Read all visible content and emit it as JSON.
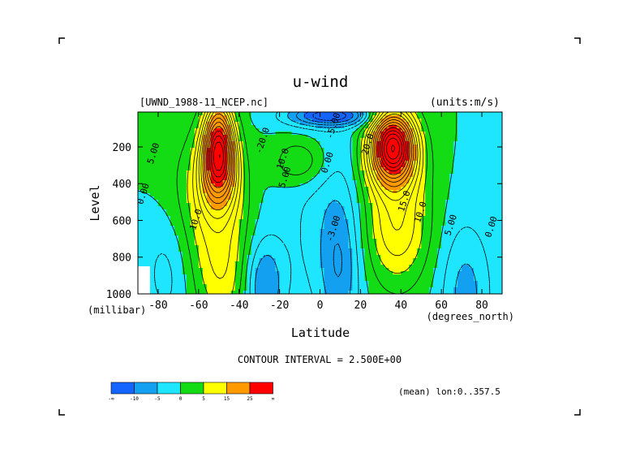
{
  "header": {
    "title": "u-wind",
    "dataset": "[UWND_1988-11_NCEP.nc]",
    "units": "(units:m/s)"
  },
  "axes": {
    "ylabel": "Level",
    "yunit": "(millibar)",
    "xlabel": "Latitude",
    "xunit": "(degrees_north)"
  },
  "footer": {
    "contour_interval": "CONTOUR INTERVAL = 2.500E+00",
    "mean_note": "(mean) lon:0..357.5"
  },
  "colorbar": {
    "colors": [
      "#1464ff",
      "#14a0f0",
      "#1ee6ff",
      "#14dc14",
      "#ffff00",
      "#ff9900",
      "#ff0000"
    ],
    "labels": [
      "-∞",
      "-10",
      "-5",
      "0",
      "5",
      "15",
      "25",
      "∞"
    ]
  },
  "chart_data": {
    "type": "contour",
    "title": "u-wind",
    "xlabel": "Latitude",
    "ylabel": "Level",
    "xlim": [
      -90,
      90
    ],
    "ylim": [
      1000,
      10
    ],
    "x_ticks": [
      -80,
      -60,
      -40,
      -20,
      0,
      20,
      40,
      60,
      80
    ],
    "y_ticks": [
      200,
      400,
      600,
      800,
      1000
    ],
    "contour_interval": 2.5,
    "contour_labels": [
      {
        "text": "5.00",
        "lat": -81,
        "level": 240
      },
      {
        "text": "0.00",
        "lat": -86,
        "level": 460
      },
      {
        "text": "10.0",
        "lat": -60,
        "level": 600
      },
      {
        "text": "-20.0",
        "lat": -27,
        "level": 170
      },
      {
        "text": "10.0",
        "lat": -17,
        "level": 270
      },
      {
        "text": "5.00",
        "lat": -16,
        "level": 370
      },
      {
        "text": "0.00",
        "lat": 5,
        "level": 290
      },
      {
        "text": "-5.00",
        "lat": 8,
        "level": 90
      },
      {
        "text": "-3.00",
        "lat": 8,
        "level": 650
      },
      {
        "text": "20.0",
        "lat": 25,
        "level": 190
      },
      {
        "text": "15.0",
        "lat": 43,
        "level": 500
      },
      {
        "text": "10.0",
        "lat": 51,
        "level": 560
      },
      {
        "text": "5.00",
        "lat": 66,
        "level": 630
      },
      {
        "text": "0.00",
        "lat": 86,
        "level": 640
      }
    ],
    "jets": [
      {
        "name": "southern_jet",
        "lat": -50,
        "level": 250,
        "max_class": ">25"
      },
      {
        "name": "northern_jet",
        "lat": 35,
        "level": 200,
        "max_class": ">25"
      }
    ],
    "fill_levels": [
      -10,
      -5,
      0,
      5,
      15,
      25
    ],
    "fill_colors": [
      "#1464ff",
      "#14a0f0",
      "#1ee6ff",
      "#14dc14",
      "#ffff00",
      "#ff9900",
      "#ff0000"
    ]
  }
}
